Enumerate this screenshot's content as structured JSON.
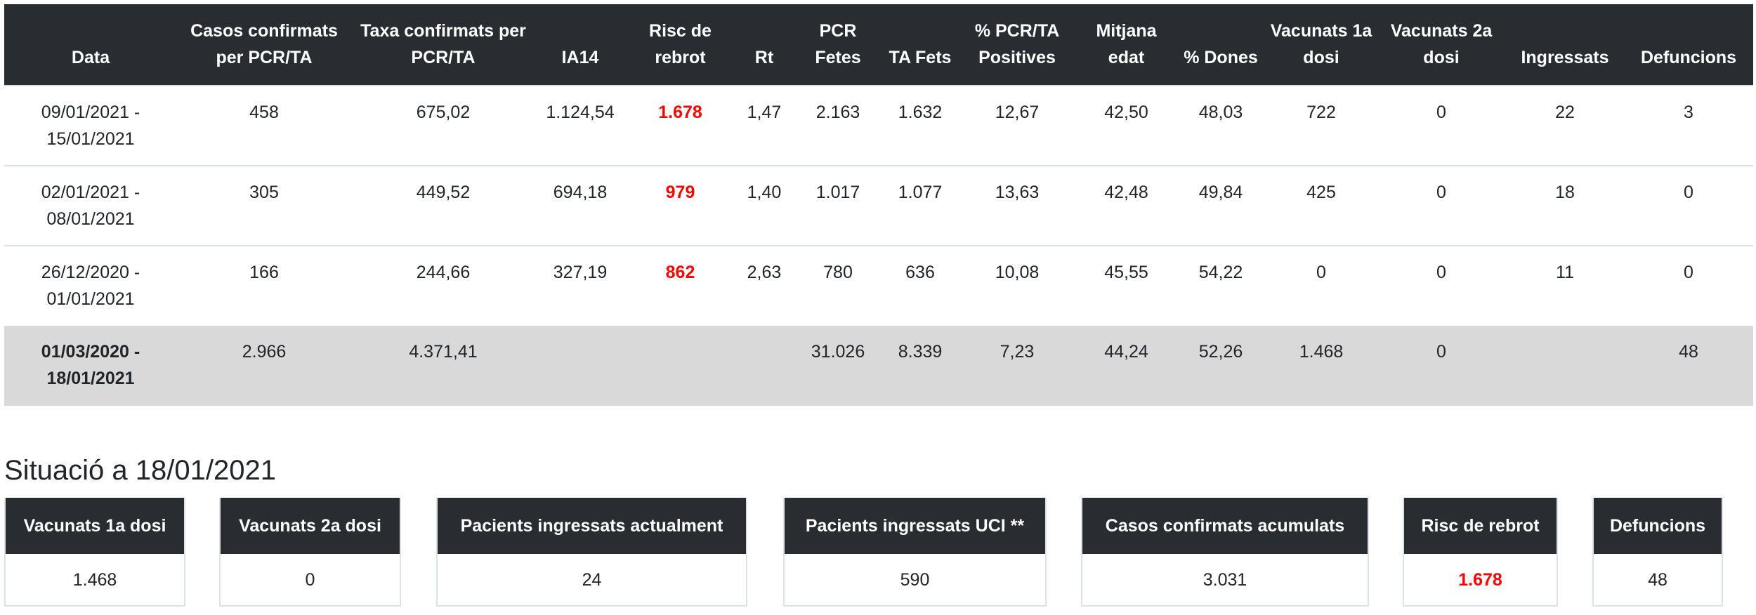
{
  "table": {
    "headers": [
      "Data",
      "Casos confirmats per PCR/TA",
      "Taxa confirmats per PCR/TA",
      "IA14",
      "Risc de rebrot",
      "Rt",
      "PCR Fetes",
      "TA Fets",
      "% PCR/TA Positives",
      "Mitjana edat",
      "% Dones",
      "Vacunats 1a dosi",
      "Vacunats 2a dosi",
      "Ingressats",
      "Defuncions"
    ],
    "rows": [
      [
        "09/01/2021 - 15/01/2021",
        "458",
        "675,02",
        "1.124,54",
        "1.678",
        "1,47",
        "2.163",
        "1.632",
        "12,67",
        "42,50",
        "48,03",
        "722",
        "0",
        "22",
        "3"
      ],
      [
        "02/01/2021 - 08/01/2021",
        "305",
        "449,52",
        "694,18",
        "979",
        "1,40",
        "1.017",
        "1.077",
        "13,63",
        "42,48",
        "49,84",
        "425",
        "0",
        "18",
        "0"
      ],
      [
        "26/12/2020 - 01/01/2021",
        "166",
        "244,66",
        "327,19",
        "862",
        "2,63",
        "780",
        "636",
        "10,08",
        "45,55",
        "54,22",
        "0",
        "0",
        "11",
        "0"
      ]
    ],
    "total": [
      "01/03/2020 - 18/01/2021",
      "2.966",
      "4.371,41",
      "",
      "",
      "",
      "31.026",
      "8.339",
      "7,23",
      "44,24",
      "52,26",
      "1.468",
      "0",
      "",
      "48"
    ]
  },
  "situation": {
    "title": "Situació a 18/01/2021",
    "cards": [
      {
        "label": "Vacunats 1a dosi",
        "value": "1.468"
      },
      {
        "label": "Vacunats 2a dosi",
        "value": "0"
      },
      {
        "label": "Pacients ingressats actualment",
        "value": "24"
      },
      {
        "label": "Pacients ingressats UCI **",
        "value": "590"
      },
      {
        "label": "Casos confirmats acumulats",
        "value": "3.031"
      },
      {
        "label": "Risc de rebrot",
        "value": "1.678"
      },
      {
        "label": "Defuncions",
        "value": "48"
      }
    ]
  },
  "colors": {
    "header": "#292d32",
    "risk": "#ff0000",
    "total_bg": "#d9d9d9"
  }
}
